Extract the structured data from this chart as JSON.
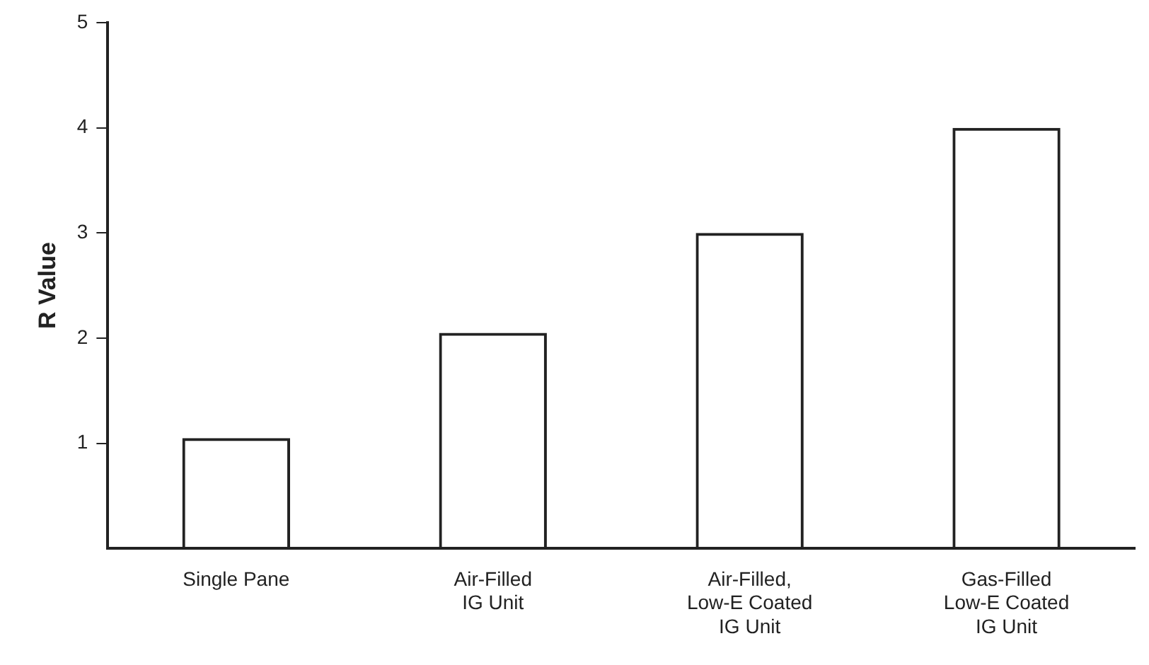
{
  "chart_data": {
    "type": "bar",
    "ylabel": "R Value",
    "categories": [
      "Single Pane",
      "Air-Filled IG Unit",
      "Air-Filled, Low-E Coated IG Unit",
      "Gas-Filled Low-E Coated IG Unit"
    ],
    "values": [
      1.05,
      2.05,
      3,
      4
    ],
    "color": "#222222",
    "ylim": [
      0,
      5
    ],
    "yticks": [
      1,
      2,
      3,
      4,
      5
    ],
    "grid": false,
    "legend": false
  }
}
